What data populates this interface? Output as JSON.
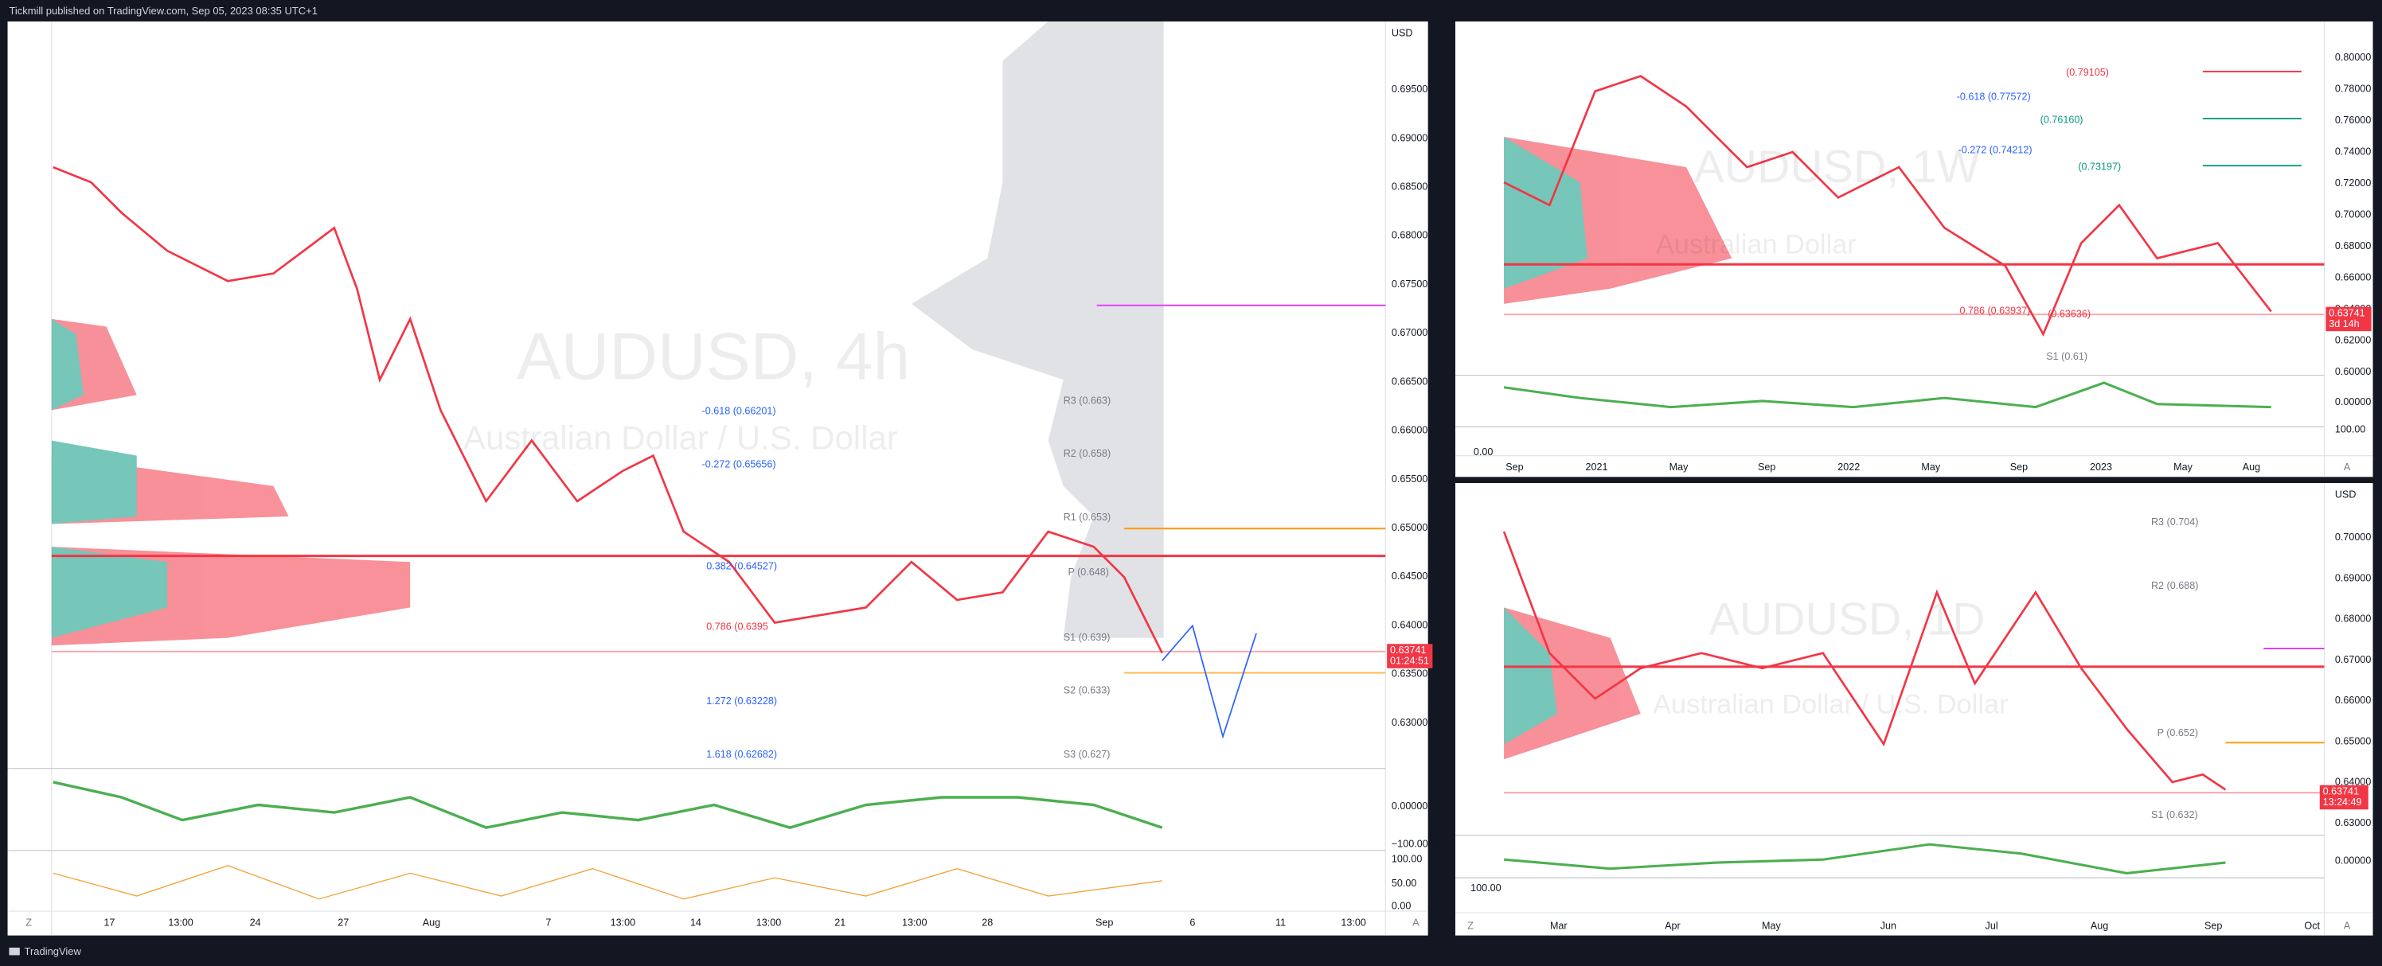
{
  "header": {
    "text": "Tickmill published on TradingView.com, Sep 05, 2023 08:35 UTC+1"
  },
  "footer": {
    "brand": "TradingView"
  },
  "panels": [
    {
      "watermark": "AUDUSD, 4h",
      "subtitle": "Australian Dollar / U.S. Dollar",
      "currency": "USD",
      "price_axis": [
        "0.69500",
        "0.69000",
        "0.68500",
        "0.68000",
        "0.67500",
        "0.67000",
        "0.66500",
        "0.66000",
        "0.65500",
        "0.65000",
        "0.64500",
        "0.64000",
        "0.63500",
        "0.63000"
      ],
      "indicator_axis": [
        "0.00000",
        "−100.00000",
        "100.00",
        "50.00",
        "0.00"
      ],
      "price_tag": {
        "price": "0.63741",
        "countdown": "01:24:51"
      },
      "annotations": [
        "-0.618 (0.66201)",
        "-0.272 (0.65656)",
        "0.382 (0.64527)",
        "0.786 (0.6395",
        "R3 (0.663)",
        "R2 (0.658)",
        "R1 (0.653)",
        "P (0.648)",
        "S1 (0.639)",
        "S2 (0.633)",
        "S3 (0.627)",
        "1.272 (0.63228)",
        "1.618 (0.62682)"
      ],
      "time_axis": [
        "17",
        "13:00",
        "24",
        "27",
        "Aug",
        "7",
        "13:00",
        "14",
        "13:00",
        "21",
        "13:00",
        "28",
        "Sep",
        "6",
        "11",
        "13:00"
      ],
      "corner_left": "Z",
      "corner_right": "A"
    },
    {
      "watermark": "AUDUSD, 1W",
      "subtitle": "Australian Dollar",
      "price_axis": [
        "0.80000",
        "0.78000",
        "0.76000",
        "0.74000",
        "0.72000",
        "0.70000",
        "0.68000",
        "0.66000",
        "0.64000",
        "0.62000",
        "0.60000"
      ],
      "indicator_axis": [
        "0.00000",
        "100.00",
        "0.00"
      ],
      "price_tag": {
        "price": "0.63741",
        "countdown": "3d 14h"
      },
      "annotations": [
        "(0.79105)",
        "-0.618 (0.77572)",
        "(0.76160)",
        "-0.272 (0.74212)",
        "(0.73197)",
        "0.786 (0.63937)",
        "(0.63636)",
        "S1 (0.61)"
      ],
      "time_axis": [
        "Sep",
        "2021",
        "May",
        "Sep",
        "2022",
        "May",
        "Sep",
        "2023",
        "May",
        "Aug"
      ],
      "corner_right": "A"
    },
    {
      "watermark": "AUDUSD, 1D",
      "subtitle": "Australian Dollar / U.S. Dollar",
      "currency": "USD",
      "price_axis": [
        "0.70000",
        "0.69000",
        "0.68000",
        "0.67000",
        "0.66000",
        "0.65000",
        "0.64000",
        "0.63000"
      ],
      "indicator_axis": [
        "0.00000",
        "100.00"
      ],
      "price_tag": {
        "price": "0.63741",
        "countdown": "13:24:49"
      },
      "annotations": [
        "R3 (0.704)",
        "R2 (0.688)",
        "P (0.652)",
        "S1 (0.632)"
      ],
      "time_axis": [
        "Mar",
        "Apr",
        "May",
        "Jun",
        "Jul",
        "Aug",
        "Sep",
        "Oct"
      ],
      "corner_left": "Z",
      "corner_right": "A"
    }
  ]
}
